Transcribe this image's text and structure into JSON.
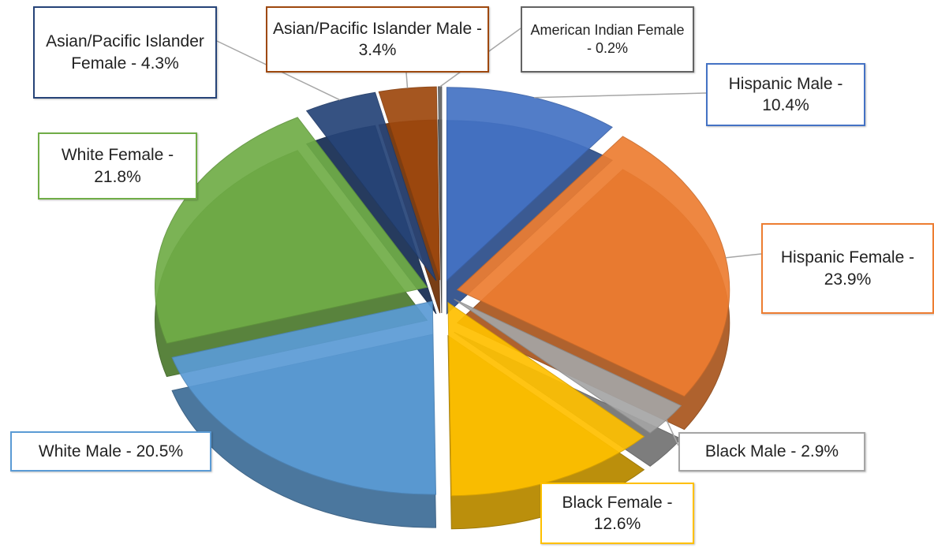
{
  "chart_data": {
    "type": "pie",
    "values": [
      10.4,
      23.9,
      2.9,
      12.6,
      20.5,
      21.8,
      4.3,
      3.4,
      0.2
    ],
    "value_labels": [
      "Hispanic Male - 10.4%",
      "Hispanic Female - 23.9%",
      "Black Male - 2.9%",
      "Black Female - 12.6%",
      "White Male - 20.5%",
      "White Female - 21.8%",
      "Asian/Pacific Islander Female - 4.3%",
      "Asian/Pacific Islander Male - 3.4%",
      "American Indian Female - 0.2%"
    ],
    "colors": [
      "#4472c4",
      "#ed7d31",
      "#a5a5a5",
      "#ffc000",
      "#5b9bd5",
      "#70ad47",
      "#264478",
      "#9e480e",
      "#636363"
    ]
  }
}
